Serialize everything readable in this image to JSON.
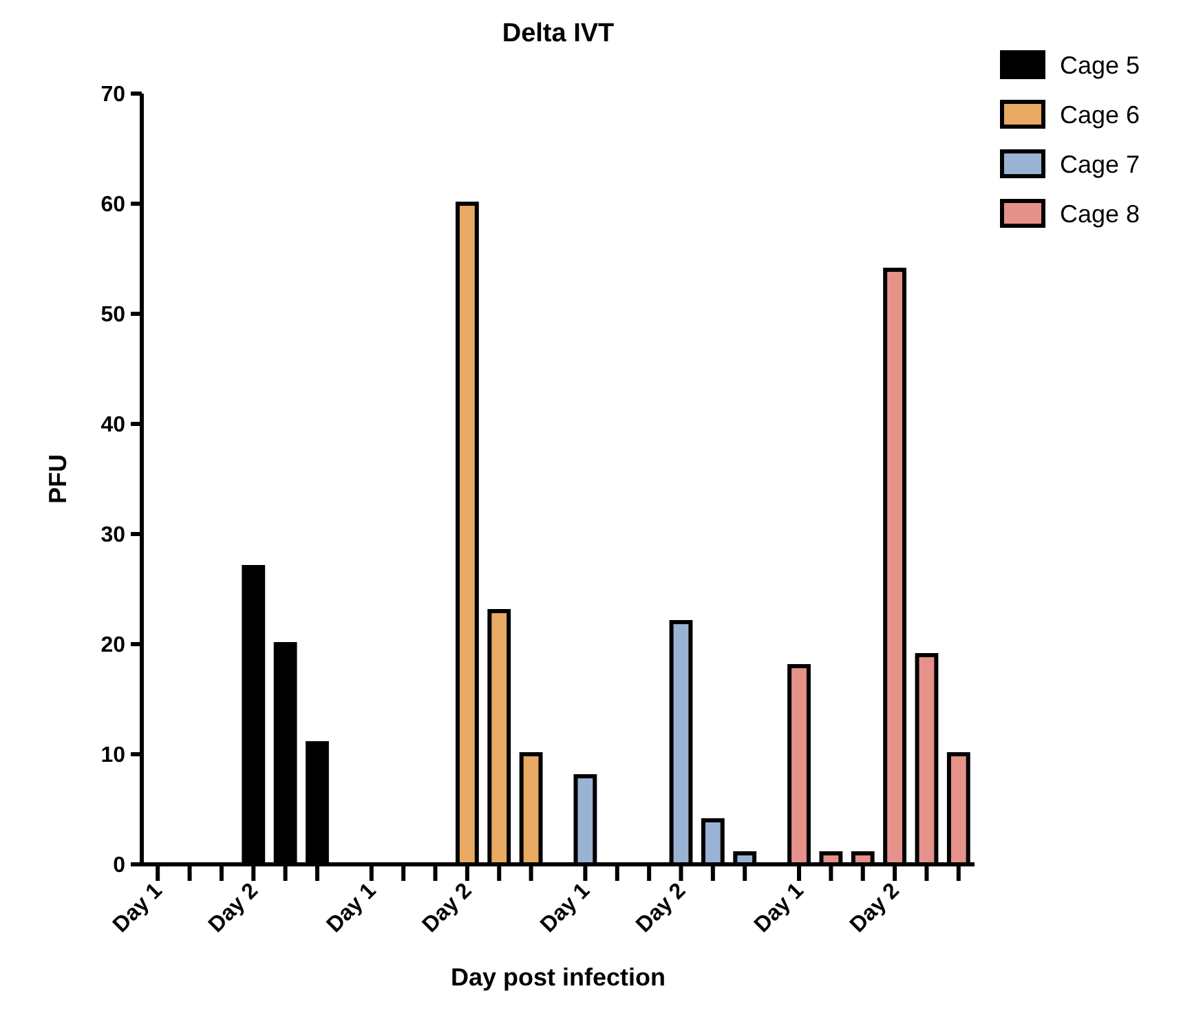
{
  "chart_data": {
    "type": "bar",
    "title": "Delta IVT",
    "xlabel": "Day post infection",
    "ylabel": "PFU",
    "categories": [
      "Day 1",
      null,
      null,
      "Day 2",
      null,
      null,
      "Day 1",
      null,
      null,
      "Day 2",
      null,
      null,
      "Day 1",
      null,
      null,
      "Day 2",
      null,
      null,
      "Day 1",
      null,
      null,
      "Day 2",
      null,
      null
    ],
    "series": [
      {
        "name": "Cage 5",
        "color": "#000000",
        "values": [
          0,
          0,
          0,
          27,
          20,
          11,
          null,
          null,
          null,
          null,
          null,
          null,
          null,
          null,
          null,
          null,
          null,
          null,
          null,
          null,
          null,
          null,
          null,
          null
        ]
      },
      {
        "name": "Cage 6",
        "color": "#e8a962",
        "values": [
          null,
          null,
          null,
          null,
          null,
          null,
          0,
          0,
          0,
          60,
          23,
          10,
          null,
          null,
          null,
          null,
          null,
          null,
          null,
          null,
          null,
          null,
          null,
          null
        ]
      },
      {
        "name": "Cage 7",
        "color": "#9ab3d4",
        "values": [
          null,
          null,
          null,
          null,
          null,
          null,
          null,
          null,
          null,
          null,
          null,
          null,
          8,
          0,
          0,
          22,
          4,
          1,
          null,
          null,
          null,
          null,
          null,
          null
        ]
      },
      {
        "name": "Cage 8",
        "color": "#e5928a",
        "values": [
          null,
          null,
          null,
          null,
          null,
          null,
          null,
          null,
          null,
          null,
          null,
          null,
          null,
          null,
          null,
          null,
          null,
          null,
          18,
          1,
          1,
          54,
          19,
          10
        ]
      }
    ],
    "ylim": [
      0,
      70
    ],
    "yticks": [
      0,
      10,
      20,
      30,
      40,
      50,
      60,
      70
    ],
    "grid": false,
    "legend": "top right"
  }
}
